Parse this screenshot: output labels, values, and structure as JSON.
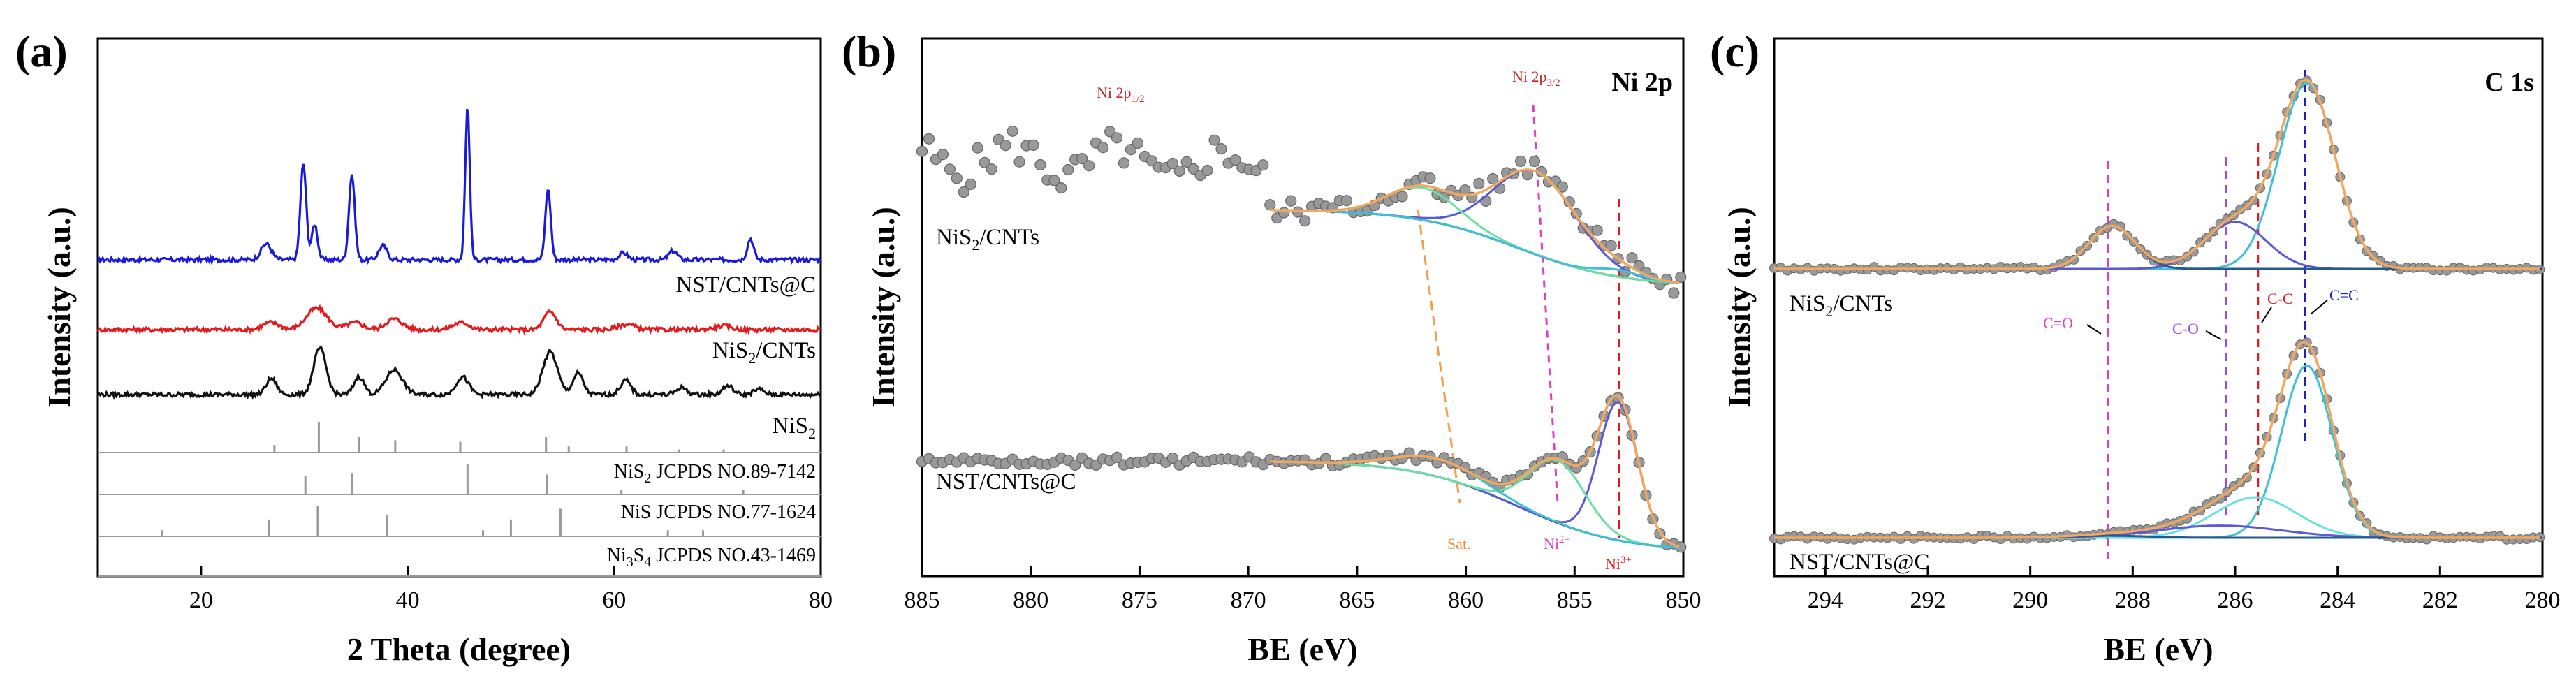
{
  "chart_data": [
    {
      "panel": "(a)",
      "type": "line",
      "xlabel": "2 Theta (degree)",
      "ylabel": "Intensity (a.u.)",
      "xlim": [
        10,
        80
      ],
      "xticks": [
        20,
        40,
        60,
        80
      ],
      "series": [
        {
          "name": "NST/CNTs@C",
          "color": "#1a1adb",
          "peaks": [
            [
              26.3,
              0.045,
              0.5
            ],
            [
              29.9,
              0.27,
              0.28
            ],
            [
              31.0,
              0.1,
              0.28
            ],
            [
              34.6,
              0.24,
              0.28
            ],
            [
              37.6,
              0.04,
              0.4
            ],
            [
              45.8,
              0.43,
              0.22
            ],
            [
              53.6,
              0.2,
              0.26
            ],
            [
              60.9,
              0.02,
              0.4
            ],
            [
              65.7,
              0.025,
              0.4
            ],
            [
              73.2,
              0.06,
              0.3
            ]
          ]
        },
        {
          "name": "NiS2/CNTs",
          "color": "#e41a1c",
          "peaks": [
            [
              26.8,
              0.02,
              0.8
            ],
            [
              31.2,
              0.06,
              1.0
            ],
            [
              34.9,
              0.02,
              0.8
            ],
            [
              38.7,
              0.03,
              0.8
            ],
            [
              45.2,
              0.02,
              0.8
            ],
            [
              53.8,
              0.05,
              0.6
            ],
            [
              61.2,
              0.015,
              0.8
            ],
            [
              70.5,
              0.01,
              0.8
            ]
          ]
        },
        {
          "name": "NiS2",
          "color": "#111111",
          "peaks": [
            [
              26.8,
              0.045,
              0.5
            ],
            [
              31.5,
              0.13,
              0.6
            ],
            [
              35.3,
              0.05,
              0.5
            ],
            [
              38.7,
              0.07,
              0.8
            ],
            [
              45.3,
              0.05,
              0.6
            ],
            [
              53.8,
              0.12,
              0.7
            ],
            [
              56.5,
              0.06,
              0.5
            ],
            [
              61.1,
              0.04,
              0.5
            ],
            [
              66.5,
              0.02,
              0.5
            ],
            [
              71.0,
              0.025,
              0.5
            ],
            [
              74.0,
              0.015,
              0.5
            ]
          ]
        }
      ],
      "references": [
        {
          "label": "NiS₂  JCPDS NO.89-7142",
          "lines": [
            [
              27.1,
              0.25
            ],
            [
              31.4,
              1.0
            ],
            [
              35.3,
              0.5
            ],
            [
              38.8,
              0.4
            ],
            [
              45.1,
              0.35
            ],
            [
              53.4,
              0.5
            ],
            [
              55.6,
              0.2
            ],
            [
              61.2,
              0.2
            ],
            [
              66.3,
              0.1
            ],
            [
              70.6,
              0.1
            ]
          ]
        },
        {
          "label": "NiS  JCPDS NO.77-1624",
          "lines": [
            [
              30.1,
              0.6
            ],
            [
              34.6,
              0.7
            ],
            [
              45.8,
              1.0
            ],
            [
              53.5,
              0.65
            ],
            [
              60.7,
              0.15
            ],
            [
              72.5,
              0.15
            ]
          ]
        },
        {
          "label": "Ni₃S₄  JCPDS NO.43-1469",
          "lines": [
            [
              16.2,
              0.2
            ],
            [
              26.6,
              0.55
            ],
            [
              31.3,
              1.0
            ],
            [
              38.0,
              0.7
            ],
            [
              47.3,
              0.2
            ],
            [
              50.0,
              0.55
            ],
            [
              54.8,
              0.9
            ],
            [
              65.2,
              0.2
            ],
            [
              68.6,
              0.2
            ]
          ]
        }
      ]
    },
    {
      "panel": "(b)",
      "type": "line",
      "title": "Ni 2p",
      "xlabel": "BE (eV)",
      "ylabel": "Intensity (a.u.)",
      "xlim": [
        885,
        850
      ],
      "xticks": [
        885,
        880,
        875,
        870,
        865,
        860,
        855,
        850
      ],
      "annotations": [
        "Ni 2p1/2",
        "Ni 2p3/2",
        "Sat.",
        "Ni2+",
        "Ni3+"
      ],
      "series": [
        {
          "name": "NiS2/CNTs",
          "peaks": [
            [
              856.8,
              0.36,
              1.9
            ],
            [
              862.0,
              0.14,
              1.6
            ],
            [
              853.0,
              0.03,
              1.0
            ]
          ]
        },
        {
          "name": "NST/CNTs@C",
          "peaks": [
            [
              853.0,
              0.62,
              0.9
            ],
            [
              855.8,
              0.28,
              1.3
            ],
            [
              861.3,
              0.08,
              2.0
            ]
          ]
        }
      ]
    },
    {
      "panel": "(c)",
      "type": "line",
      "title": "C 1s",
      "xlabel": "BE (eV)",
      "ylabel": "Intensity (a.u.)",
      "xlim": [
        295,
        280
      ],
      "xticks": [
        294,
        292,
        290,
        288,
        286,
        284,
        282,
        280
      ],
      "annotations": [
        "C=O",
        "C-O",
        "C-C",
        "C=C"
      ],
      "series": [
        {
          "name": "NiS2/CNTs",
          "peaks": [
            [
              284.6,
              0.95,
              0.55
            ],
            [
              286.0,
              0.24,
              0.6
            ],
            [
              288.4,
              0.22,
              0.45
            ]
          ]
        },
        {
          "name": "NST/CNTs@C",
          "peaks": [
            [
              284.6,
              0.85,
              0.5
            ],
            [
              285.6,
              0.2,
              0.8
            ],
            [
              286.3,
              0.06,
              1.2
            ],
            [
              288.5,
              0.01,
              0.8
            ]
          ]
        }
      ]
    }
  ],
  "labels": {
    "a_panel": "(a)",
    "a_ylabel": "Intensity (a.u.)",
    "a_xlabel": "2 Theta (degree)",
    "a_s1": "NST/CNTs@C",
    "a_s2_pre": "NiS",
    "a_s2_sub": "2",
    "a_s2_post": "/CNTs",
    "a_s3_pre": "NiS",
    "a_s3_sub": "2",
    "a_r1_pre": "NiS",
    "a_r1_sub": "2",
    "a_r1_post": "  JCPDS NO.89-7142",
    "a_r2": "NiS  JCPDS NO.77-1624",
    "a_r3_pre": "Ni",
    "a_r3_sub1": "3",
    "a_r3_mid": "S",
    "a_r3_sub2": "4",
    "a_r3_post": "  JCPDS NO.43-1469",
    "b_panel": "(b)",
    "b_title": "Ni 2p",
    "b_ylabel": "Intensity (a.u.)",
    "b_xlabel": "BE (eV)",
    "b_s1_pre": "NiS",
    "b_s1_sub": "2",
    "b_s1_post": "/CNTs",
    "b_s2": "NST/CNTs@C",
    "b_p12_pre": "Ni 2p",
    "b_p12_sub": "1/2",
    "b_p32_pre": "Ni 2p",
    "b_p32_sub": "3/2",
    "b_sat": "Sat.",
    "b_ni2_pre": "Ni",
    "b_ni2_sup": "2+",
    "b_ni3_pre": "Ni",
    "b_ni3_sup": "3+",
    "c_panel": "(c)",
    "c_title": "C 1s",
    "c_ylabel": "Intensity (a.u.)",
    "c_xlabel": "BE (eV)",
    "c_s1_pre": "NiS",
    "c_s1_sub": "2",
    "c_s1_post": "/CNTs",
    "c_s2": "NST/CNTs@C",
    "c_co": "C=O",
    "c_cOsingle": "C-O",
    "c_cc": "C-C",
    "c_cdc": "C=C"
  }
}
